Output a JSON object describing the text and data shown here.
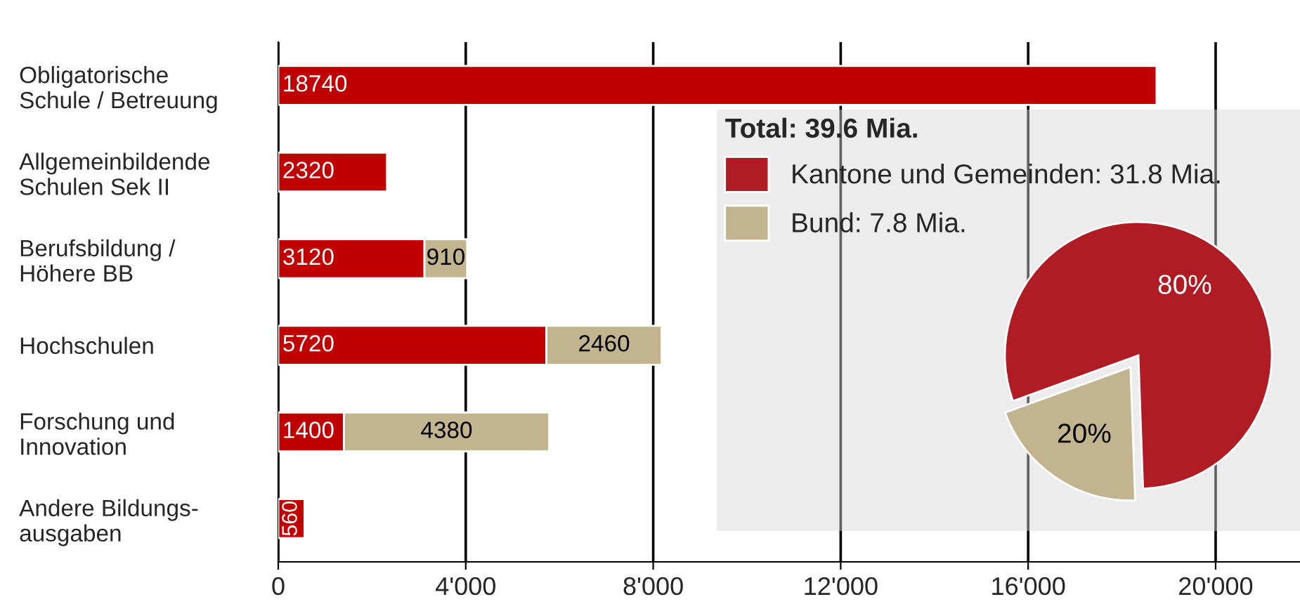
{
  "chart_data": [
    {
      "type": "bar",
      "orientation": "horizontal",
      "stacked": true,
      "data_labels": true,
      "grid": "x",
      "categories": [
        "Obligatorische\nSchule / Betreuung",
        "Allgemeinbildende\nSchulen Sek II",
        "Berufsbildung /\nHöhere BB",
        "Hochschulen",
        "Forschung und\nInnovation",
        "Andere Bildungs-\nausgaben"
      ],
      "series": [
        {
          "color": "#c00000",
          "values": [
            18740,
            2320,
            3120,
            5720,
            1400,
            560
          ]
        },
        {
          "color": "#c2b48e",
          "values": [
            null,
            null,
            910,
            2460,
            4380,
            null
          ]
        }
      ],
      "xlim": [
        0,
        21800
      ],
      "xticks": [
        0,
        {
          "value": 4000,
          "label": "4'000"
        },
        {
          "value": 8000,
          "label": "8'000"
        },
        {
          "value": 12000,
          "label": "12'000"
        },
        {
          "value": 16000,
          "label": "16'000"
        },
        {
          "value": 20000,
          "label": "20'000"
        }
      ]
    },
    {
      "type": "pie",
      "legend_title": "Total: 39.6 Mia.",
      "legend": "top left",
      "categories": [
        "Kantone und Gemeinden: 31.8 Mia.",
        "Bund: 7.8 Mia."
      ],
      "values": [
        80,
        20
      ],
      "colors": [
        "#b01c24",
        "#c2b48e"
      ],
      "value_labels": [
        "80%",
        "20%"
      ]
    }
  ]
}
